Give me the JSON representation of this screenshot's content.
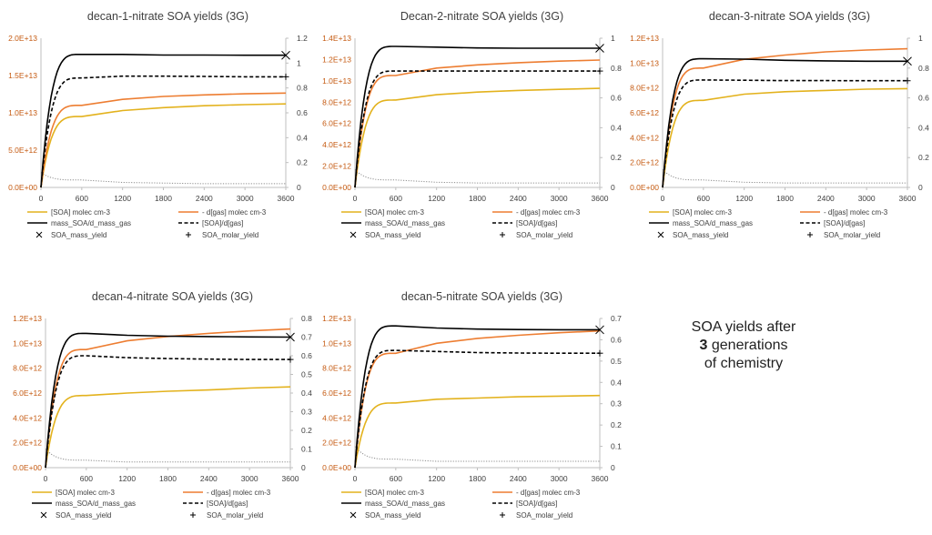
{
  "note": {
    "line1": "SOA yields after",
    "line2_num": "3",
    "line2_rest": " generations",
    "line3": "of chemistry"
  },
  "colors": {
    "soa": "#e3b21d",
    "dgas": "#ed7d31",
    "mass_ratio": "#000000",
    "molar_ratio": "#000000",
    "minor": "#8c8c8c",
    "left_axis": "#c55a11",
    "axis_text": "#404040"
  },
  "legend": [
    "[SOA]  molec cm-3",
    "- d[gas]  molec cm-3",
    "mass_SOA/d_mass_gas",
    "[SOA]/d[gas]",
    "SOA_mass_yield",
    "SOA_molar_yield"
  ],
  "chart_data": [
    {
      "type": "line",
      "title": "decan-1-nitrate SOA yields (3G)",
      "x": [
        0,
        600,
        1200,
        1800,
        2400,
        3000,
        3600
      ],
      "xlim": [
        0,
        3600
      ],
      "x_ticks": [
        "0",
        "600",
        "1200",
        "1800",
        "2400",
        "3000",
        "3600"
      ],
      "ylim_left": [
        0,
        20000000000000
      ],
      "y_ticks_left": [
        "0.0E+00",
        "5.0E+12",
        "1.0E+13",
        "1.5E+13",
        "2.0E+13"
      ],
      "ylim_right": [
        0,
        1.2
      ],
      "y_ticks_right": [
        "0",
        "0.2",
        "0.4",
        "0.6",
        "0.8",
        "1",
        "1.2"
      ],
      "series": [
        {
          "name": "[SOA]  molec cm-3",
          "axis": "left",
          "values": [
            0,
            9500000000000,
            10300000000000,
            10700000000000,
            10950000000000,
            11100000000000,
            11200000000000
          ]
        },
        {
          "name": "- d[gas]  molec cm-3",
          "axis": "left",
          "values": [
            0,
            11000000000000,
            11800000000000,
            12200000000000,
            12400000000000,
            12550000000000,
            12650000000000
          ]
        },
        {
          "name": "mass_SOA/d_mass_gas",
          "axis": "right",
          "values": [
            0,
            1.07,
            1.07,
            1.065,
            1.065,
            1.063,
            1.063
          ]
        },
        {
          "name": "[SOA]/d[gas]",
          "axis": "right",
          "values": [
            0,
            0.88,
            0.895,
            0.895,
            0.893,
            0.89,
            0.89
          ]
        },
        {
          "name": "minor",
          "axis": "right",
          "values": [
            0.12,
            0.06,
            0.04,
            0.035,
            0.03,
            0.03,
            0.03
          ]
        }
      ],
      "markers": [
        {
          "name": "SOA_mass_yield",
          "x": 3600,
          "value": 1.063
        },
        {
          "name": "SOA_molar_yield",
          "x": 3600,
          "value": 0.89
        }
      ]
    },
    {
      "type": "line",
      "title": "Decan-2-nitrate SOA yields (3G)",
      "x": [
        0,
        600,
        1200,
        1800,
        2400,
        3000,
        3600
      ],
      "xlim": [
        0,
        3600
      ],
      "x_ticks": [
        "0",
        "600",
        "1200",
        "1800",
        "2400",
        "3000",
        "3600"
      ],
      "ylim_left": [
        0,
        14000000000000
      ],
      "y_ticks_left": [
        "0.0E+00",
        "2.0E+12",
        "4.0E+12",
        "6.0E+12",
        "8.0E+12",
        "1.0E+13",
        "1.2E+13",
        "1.4E+13"
      ],
      "ylim_right": [
        0,
        1
      ],
      "y_ticks_right": [
        "0",
        "0.2",
        "0.4",
        "0.6",
        "0.8",
        "1"
      ],
      "series": [
        {
          "name": "[SOA]  molec cm-3",
          "axis": "left",
          "values": [
            0,
            8200000000000,
            8700000000000,
            8950000000000,
            9100000000000,
            9200000000000,
            9300000000000
          ]
        },
        {
          "name": "- d[gas]  molec cm-3",
          "axis": "left",
          "values": [
            0,
            10500000000000,
            11200000000000,
            11500000000000,
            11700000000000,
            11850000000000,
            11950000000000
          ]
        },
        {
          "name": "mass_SOA/d_mass_gas",
          "axis": "right",
          "values": [
            0,
            0.945,
            0.94,
            0.935,
            0.933,
            0.933,
            0.933
          ]
        },
        {
          "name": "[SOA]/d[gas]",
          "axis": "right",
          "values": [
            0,
            0.78,
            0.78,
            0.78,
            0.78,
            0.78,
            0.78
          ]
        },
        {
          "name": "minor",
          "axis": "right",
          "values": [
            0.12,
            0.05,
            0.035,
            0.03,
            0.03,
            0.03,
            0.03
          ]
        }
      ],
      "markers": [
        {
          "name": "SOA_mass_yield",
          "x": 3600,
          "value": 0.933
        },
        {
          "name": "SOA_molar_yield",
          "x": 3600,
          "value": 0.78
        }
      ]
    },
    {
      "type": "line",
      "title": "decan-3-nitrate SOA yields (3G)",
      "x": [
        0,
        600,
        1200,
        1800,
        2400,
        3000,
        3600
      ],
      "xlim": [
        0,
        3600
      ],
      "x_ticks": [
        "0",
        "600",
        "1200",
        "1800",
        "2400",
        "3000",
        "3600"
      ],
      "ylim_left": [
        0,
        12000000000000
      ],
      "y_ticks_left": [
        "0.0E+00",
        "2.0E+12",
        "4.0E+12",
        "6.0E+12",
        "8.0E+12",
        "1.0E+13",
        "1.2E+13"
      ],
      "ylim_right": [
        0,
        1
      ],
      "y_ticks_right": [
        "0",
        "0.2",
        "0.4",
        "0.6",
        "0.8",
        "1"
      ],
      "series": [
        {
          "name": "[SOA]  molec cm-3",
          "axis": "left",
          "values": [
            0,
            7000000000000,
            7500000000000,
            7700000000000,
            7800000000000,
            7900000000000,
            7950000000000
          ]
        },
        {
          "name": "- d[gas]  molec cm-3",
          "axis": "left",
          "values": [
            0,
            9600000000000,
            10300000000000,
            10650000000000,
            10900000000000,
            11050000000000,
            11150000000000
          ]
        },
        {
          "name": "mass_SOA/d_mass_gas",
          "axis": "right",
          "values": [
            0,
            0.862,
            0.86,
            0.852,
            0.848,
            0.846,
            0.846
          ]
        },
        {
          "name": "[SOA]/d[gas]",
          "axis": "right",
          "values": [
            0,
            0.72,
            0.718,
            0.716,
            0.716,
            0.715,
            0.715
          ]
        },
        {
          "name": "minor",
          "axis": "right",
          "values": [
            0.12,
            0.05,
            0.035,
            0.03,
            0.03,
            0.03,
            0.03
          ]
        }
      ],
      "markers": [
        {
          "name": "SOA_mass_yield",
          "x": 3600,
          "value": 0.846
        },
        {
          "name": "SOA_molar_yield",
          "x": 3600,
          "value": 0.715
        }
      ]
    },
    {
      "type": "line",
      "title": "decan-4-nitrate SOA yields (3G)",
      "x": [
        0,
        600,
        1200,
        1800,
        2400,
        3000,
        3600
      ],
      "xlim": [
        0,
        3600
      ],
      "x_ticks": [
        "0",
        "600",
        "1200",
        "1800",
        "2400",
        "3000",
        "3600"
      ],
      "ylim_left": [
        0,
        12000000000000
      ],
      "y_ticks_left": [
        "0.0E+00",
        "2.0E+12",
        "4.0E+12",
        "6.0E+12",
        "8.0E+12",
        "1.0E+13",
        "1.2E+13"
      ],
      "ylim_right": [
        0,
        0.8
      ],
      "y_ticks_right": [
        "0",
        "0.1",
        "0.2",
        "0.3",
        "0.4",
        "0.5",
        "0.6",
        "0.7",
        "0.8"
      ],
      "series": [
        {
          "name": "[SOA]  molec cm-3",
          "axis": "left",
          "values": [
            0,
            5800000000000,
            6000000000000,
            6150000000000,
            6250000000000,
            6400000000000,
            6500000000000
          ]
        },
        {
          "name": "- d[gas]  molec cm-3",
          "axis": "left",
          "values": [
            0,
            9500000000000,
            10200000000000,
            10550000000000,
            10800000000000,
            11000000000000,
            11150000000000
          ]
        },
        {
          "name": "mass_SOA/d_mass_gas",
          "axis": "right",
          "values": [
            0,
            0.72,
            0.71,
            0.705,
            0.703,
            0.701,
            0.7
          ]
        },
        {
          "name": "[SOA]/d[gas]",
          "axis": "right",
          "values": [
            0,
            0.6,
            0.59,
            0.585,
            0.582,
            0.58,
            0.58
          ]
        },
        {
          "name": "minor",
          "axis": "right",
          "values": [
            0.1,
            0.04,
            0.03,
            0.03,
            0.03,
            0.03,
            0.03
          ]
        }
      ],
      "markers": [
        {
          "name": "SOA_mass_yield",
          "x": 3600,
          "value": 0.7
        },
        {
          "name": "SOA_molar_yield",
          "x": 3600,
          "value": 0.58
        }
      ]
    },
    {
      "type": "line",
      "title": "decan-5-nitrate SOA yields (3G)",
      "x": [
        0,
        600,
        1200,
        1800,
        2400,
        3000,
        3600
      ],
      "xlim": [
        0,
        3600
      ],
      "x_ticks": [
        "0",
        "600",
        "1200",
        "1800",
        "2400",
        "3000",
        "3600"
      ],
      "ylim_left": [
        0,
        12000000000000
      ],
      "y_ticks_left": [
        "0.0E+00",
        "2.0E+12",
        "4.0E+12",
        "6.0E+12",
        "8.0E+12",
        "1.0E+13",
        "1.2E+13"
      ],
      "ylim_right": [
        0,
        0.7
      ],
      "y_ticks_right": [
        "0",
        "0.1",
        "0.2",
        "0.3",
        "0.4",
        "0.5",
        "0.6",
        "0.7"
      ],
      "series": [
        {
          "name": "[SOA]  molec cm-3",
          "axis": "left",
          "values": [
            0,
            5200000000000,
            5500000000000,
            5600000000000,
            5700000000000,
            5750000000000,
            5800000000000
          ]
        },
        {
          "name": "- d[gas]  molec cm-3",
          "axis": "left",
          "values": [
            0,
            9200000000000,
            10000000000000,
            10400000000000,
            10650000000000,
            10850000000000,
            11000000000000
          ]
        },
        {
          "name": "mass_SOA/d_mass_gas",
          "axis": "right",
          "values": [
            0,
            0.665,
            0.655,
            0.65,
            0.648,
            0.647,
            0.647
          ]
        },
        {
          "name": "[SOA]/d[gas]",
          "axis": "right",
          "values": [
            0,
            0.55,
            0.545,
            0.54,
            0.538,
            0.537,
            0.537
          ]
        },
        {
          "name": "minor",
          "axis": "right",
          "values": [
            0.1,
            0.04,
            0.03,
            0.03,
            0.03,
            0.03,
            0.03
          ]
        }
      ],
      "markers": [
        {
          "name": "SOA_mass_yield",
          "x": 3600,
          "value": 0.647
        },
        {
          "name": "SOA_molar_yield",
          "x": 3600,
          "value": 0.537
        }
      ]
    }
  ]
}
